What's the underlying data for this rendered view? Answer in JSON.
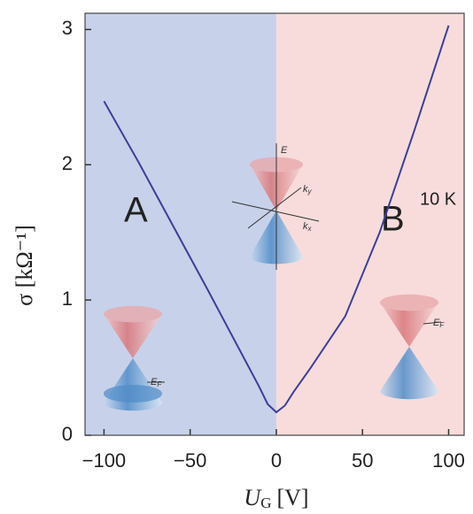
{
  "chart_data": {
    "type": "line",
    "y_label": "σ [kΩ⁻¹]",
    "x_label": {
      "symbol": "U",
      "subscript": "G",
      "unit": "[V]"
    },
    "x": [
      -100,
      -80,
      -60,
      -40,
      -20,
      -10,
      -5,
      0,
      5,
      10,
      20,
      40,
      60,
      80,
      100
    ],
    "series": [
      {
        "color": "#3b3f9a",
        "values": [
          2.47,
          2.02,
          1.55,
          1.08,
          0.6,
          0.36,
          0.23,
          0.17,
          0.22,
          0.32,
          0.5,
          0.88,
          1.5,
          2.25,
          3.03
        ]
      }
    ],
    "xlim": [
      -111,
      109
    ],
    "ylim": [
      0,
      3.12
    ],
    "xticks": [
      {
        "value": -100,
        "label": "−100"
      },
      {
        "value": -50,
        "label": "−50"
      },
      0,
      50,
      100
    ],
    "yticks": [
      0,
      1,
      2,
      3
    ],
    "regions": [
      {
        "x": [
          -111,
          0
        ],
        "color": "#c7d1ea"
      },
      {
        "x": [
          0,
          109
        ],
        "color": "#f7dcdb"
      }
    ],
    "annotations": {
      "left": "A",
      "right": "B",
      "temperature": "10 K"
    },
    "inset_labels": {
      "energy": "E",
      "ky": {
        "base": "k",
        "sub": "y"
      },
      "kx": {
        "base": "k",
        "sub": "x"
      },
      "fermi_left": {
        "base": "E",
        "sub": "F"
      },
      "fermi_right": {
        "base": "E",
        "sub": "F"
      }
    }
  }
}
